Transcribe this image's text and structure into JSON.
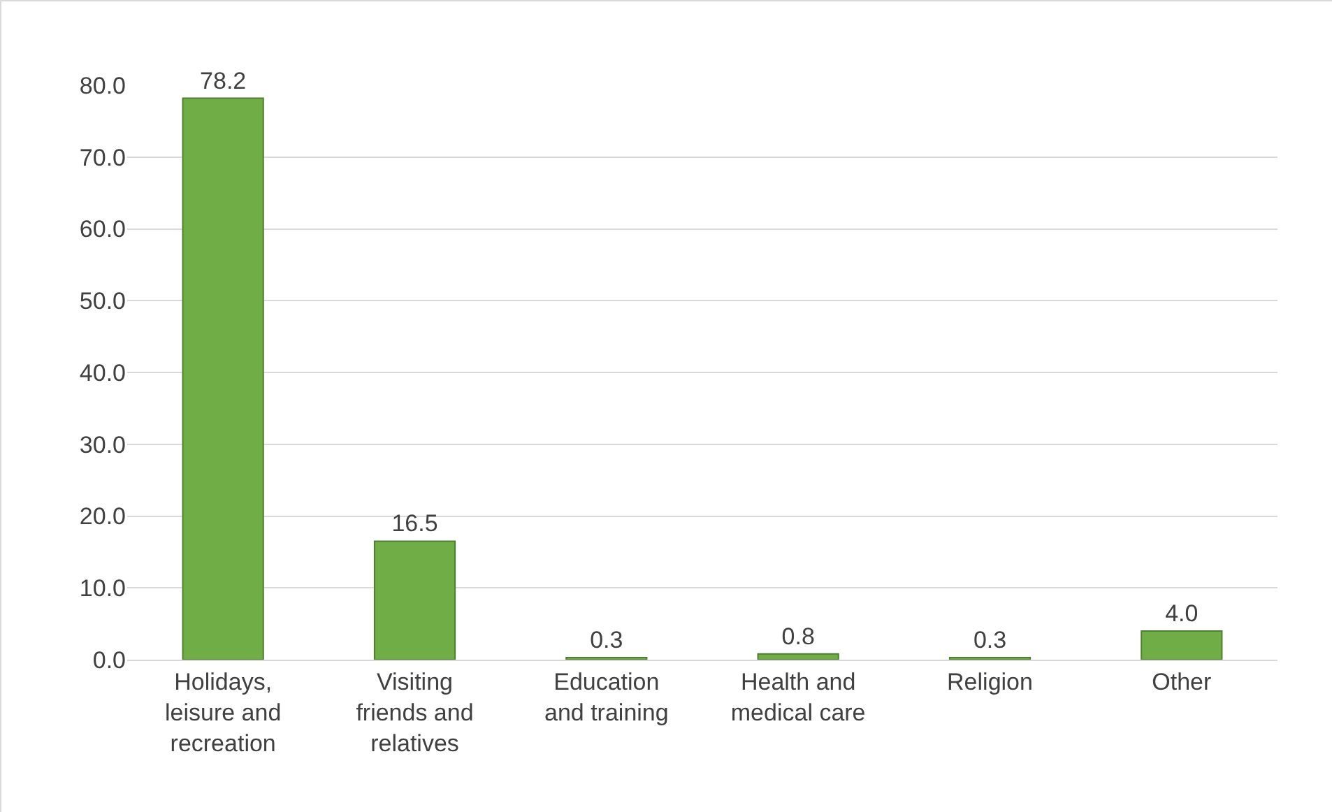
{
  "chart_data": {
    "type": "bar",
    "categories": [
      "Holidays, leisure and recreation",
      "Visiting friends and relatives",
      "Education and training",
      "Health and medical care",
      "Religion",
      "Other"
    ],
    "values": [
      78.2,
      16.5,
      0.3,
      0.8,
      0.3,
      4.0
    ],
    "value_labels": [
      "78.2",
      "16.5",
      "0.3",
      "0.8",
      "0.3",
      "4.0"
    ],
    "color": "#70ad47",
    "ylim": [
      0,
      80
    ],
    "yticks": [
      {
        "value": 0,
        "label": "0.0"
      },
      {
        "value": 10,
        "label": "10.0"
      },
      {
        "value": 20,
        "label": "20.0"
      },
      {
        "value": 30,
        "label": "30.0"
      },
      {
        "value": 40,
        "label": "40.0"
      },
      {
        "value": 50,
        "label": "50.0"
      },
      {
        "value": 60,
        "label": "60.0"
      },
      {
        "value": 70,
        "label": "70.0"
      },
      {
        "value": 80,
        "label": "80.0"
      }
    ],
    "grid": "y"
  }
}
